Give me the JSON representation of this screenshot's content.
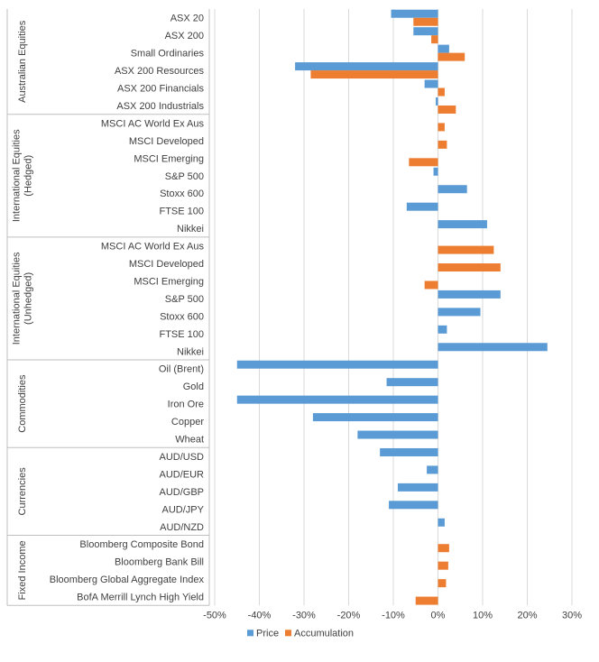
{
  "chart_data": {
    "type": "bar",
    "orientation": "horizontal",
    "title": "",
    "xlabel": "",
    "ylabel": "",
    "xlim": [
      -50,
      30
    ],
    "x_ticks": [
      "-50%",
      "-40%",
      "-30%",
      "-20%",
      "-10%",
      "0%",
      "10%",
      "20%",
      "30%"
    ],
    "grid": "vertical",
    "legend_position": "bottom",
    "series": [
      {
        "name": "Price",
        "color": "#5B9BD5"
      },
      {
        "name": "Accumulation",
        "color": "#ED7D31"
      }
    ],
    "groups": [
      {
        "label": "Australian Equities",
        "items": [
          {
            "category": "ASX 20",
            "price": -10.5,
            "accumulation": -5.5
          },
          {
            "category": "ASX 200",
            "price": -5.5,
            "accumulation": -1.5
          },
          {
            "category": "Small Ordinaries",
            "price": 2.5,
            "accumulation": 6.0
          },
          {
            "category": "ASX 200 Resources",
            "price": -32.0,
            "accumulation": -28.5
          },
          {
            "category": "ASX 200 Financials",
            "price": -3.0,
            "accumulation": 1.5
          },
          {
            "category": "ASX 200 Industrials",
            "price": -0.5,
            "accumulation": 4.0
          }
        ]
      },
      {
        "label": "International Equities (Hedged)",
        "label_lines": [
          "International Equities",
          "(Hedged)"
        ],
        "items": [
          {
            "category": "MSCI AC World Ex Aus",
            "price": null,
            "accumulation": 1.5
          },
          {
            "category": "MSCI Developed",
            "price": null,
            "accumulation": 2.0
          },
          {
            "category": "MSCI Emerging",
            "price": null,
            "accumulation": -6.5
          },
          {
            "category": "S&P 500",
            "price": -1.0,
            "accumulation": null
          },
          {
            "category": "Stoxx 600",
            "price": 6.5,
            "accumulation": null
          },
          {
            "category": "FTSE 100",
            "price": -7.0,
            "accumulation": null
          },
          {
            "category": "Nikkei",
            "price": 11.0,
            "accumulation": null
          }
        ]
      },
      {
        "label": "International Equities (Unhedged)",
        "label_lines": [
          "International Equities",
          "(Unhedged)"
        ],
        "items": [
          {
            "category": "MSCI AC World Ex Aus",
            "price": null,
            "accumulation": 12.5
          },
          {
            "category": "MSCI Developed",
            "price": null,
            "accumulation": 14.0
          },
          {
            "category": "MSCI Emerging",
            "price": null,
            "accumulation": -3.0
          },
          {
            "category": "S&P 500",
            "price": 14.0,
            "accumulation": null
          },
          {
            "category": "Stoxx 600",
            "price": 9.5,
            "accumulation": null
          },
          {
            "category": "FTSE 100",
            "price": 2.0,
            "accumulation": null
          },
          {
            "category": "Nikkei",
            "price": 24.5,
            "accumulation": null
          }
        ]
      },
      {
        "label": "Commodities",
        "items": [
          {
            "category": "Oil (Brent)",
            "price": -45.0,
            "accumulation": null
          },
          {
            "category": "Gold",
            "price": -11.5,
            "accumulation": null
          },
          {
            "category": "Iron Ore",
            "price": -45.0,
            "accumulation": null
          },
          {
            "category": "Copper",
            "price": -28.0,
            "accumulation": null
          },
          {
            "category": "Wheat",
            "price": -18.0,
            "accumulation": null
          }
        ]
      },
      {
        "label": "Currencies",
        "items": [
          {
            "category": "AUD/USD",
            "price": -13.0,
            "accumulation": null
          },
          {
            "category": "AUD/EUR",
            "price": -2.5,
            "accumulation": null
          },
          {
            "category": "AUD/GBP",
            "price": -9.0,
            "accumulation": null
          },
          {
            "category": "AUD/JPY",
            "price": -11.0,
            "accumulation": null
          },
          {
            "category": "AUD/NZD",
            "price": 1.5,
            "accumulation": null
          }
        ]
      },
      {
        "label": "Fixed Income",
        "items": [
          {
            "category": "Bloomberg Composite Bond",
            "price": null,
            "accumulation": 2.5
          },
          {
            "category": "Bloomberg Bank Bill",
            "price": null,
            "accumulation": 2.3
          },
          {
            "category": "Bloomberg Global Aggregate Index",
            "price": null,
            "accumulation": 1.8
          },
          {
            "category": "BofA Merrill Lynch High Yield",
            "price": null,
            "accumulation": -5.0
          }
        ]
      }
    ]
  }
}
